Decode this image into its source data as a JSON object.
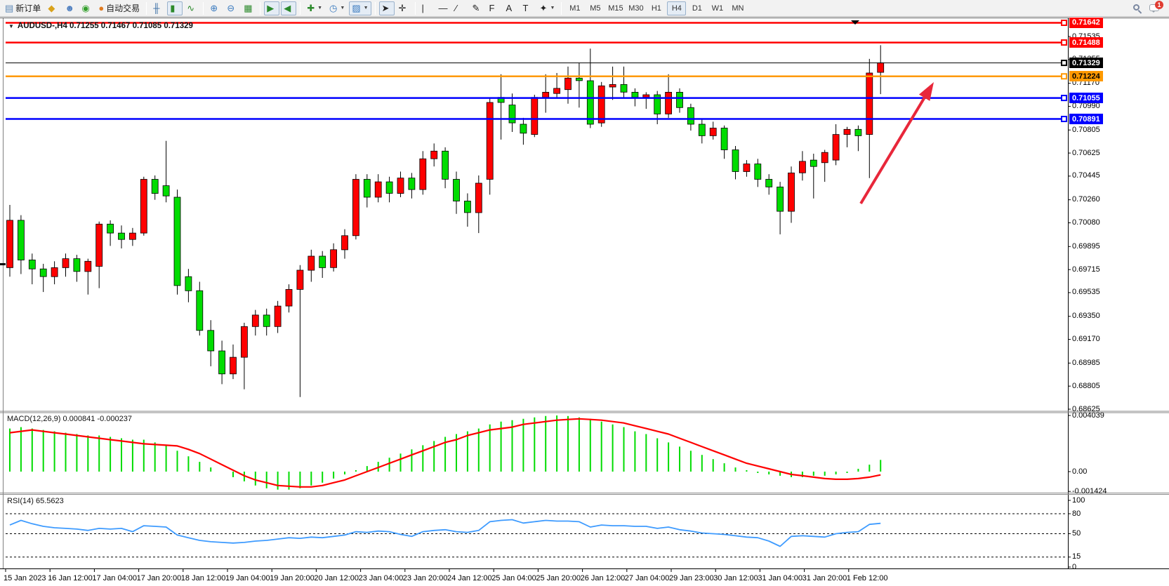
{
  "toolbar": {
    "groups": [
      {
        "items": [
          {
            "id": "new-order",
            "label": "新订单",
            "icon": "doc",
            "glyph": "▤",
            "color": "#5b87b5"
          },
          {
            "id": "charts",
            "icon": "gold",
            "glyph": "◆",
            "color": "#d9a21b"
          },
          {
            "id": "market-watch",
            "icon": "person",
            "glyph": "☻",
            "color": "#4f7fc0"
          },
          {
            "id": "signals",
            "icon": "signal",
            "glyph": "◉",
            "color": "#33a02c"
          },
          {
            "id": "auto-trading",
            "label": "自动交易",
            "icon": "basket",
            "glyph": "●",
            "color": "#e07b20"
          }
        ]
      },
      {
        "items": [
          {
            "id": "bar-chart",
            "icon": "bars",
            "glyph": "╫",
            "color": "#3a6ea5"
          },
          {
            "id": "candlestick-chart",
            "icon": "candles",
            "glyph": "▮",
            "color": "#2c8a2c",
            "active": true
          },
          {
            "id": "line-chart",
            "icon": "linechart",
            "glyph": "∿",
            "color": "#2c8a2c"
          }
        ]
      },
      {
        "items": [
          {
            "id": "zoom-in",
            "icon": "zoom-in",
            "glyph": "⊕",
            "color": "#3a7abf"
          },
          {
            "id": "zoom-out",
            "icon": "zoom-out",
            "glyph": "⊖",
            "color": "#3a7abf"
          },
          {
            "id": "tile-windows",
            "icon": "tiles",
            "glyph": "▦",
            "color": "#2c8a2c"
          }
        ]
      },
      {
        "items": [
          {
            "id": "auto-scroll",
            "icon": "auto-scroll",
            "glyph": "▶",
            "color": "#2c8a2c",
            "active": true
          },
          {
            "id": "chart-shift",
            "icon": "chart-shift",
            "glyph": "◀",
            "color": "#2c8a2c",
            "active": true
          }
        ]
      },
      {
        "items": [
          {
            "id": "indicators",
            "icon": "indicator-plus",
            "glyph": "✚",
            "color": "#2c8a2c",
            "dropdown": true
          },
          {
            "id": "periods",
            "icon": "clock",
            "glyph": "◷",
            "color": "#3a7abf",
            "dropdown": true
          },
          {
            "id": "templates",
            "icon": "template",
            "glyph": "▨",
            "color": "#3a7abf",
            "dropdown": true,
            "active": true
          }
        ]
      },
      {
        "items": [
          {
            "id": "cursor",
            "icon": "cursor-arrow",
            "glyph": "➤",
            "color": "#222",
            "active": true
          },
          {
            "id": "crosshair",
            "icon": "crosshair",
            "glyph": "✛",
            "color": "#222"
          }
        ]
      },
      {
        "items": [
          {
            "id": "vertical-line",
            "icon": "vline",
            "glyph": "|",
            "color": "#222"
          },
          {
            "id": "horizontal-line",
            "icon": "hline",
            "glyph": "—",
            "color": "#222"
          },
          {
            "id": "trendline",
            "icon": "trendline",
            "glyph": "∕",
            "color": "#222"
          },
          {
            "id": "equidistant-channel",
            "icon": "channel",
            "glyph": "✎",
            "color": "#222"
          },
          {
            "id": "fibonacci",
            "icon": "fibo",
            "glyph": "F",
            "color": "#222"
          },
          {
            "id": "text",
            "icon": "text-a",
            "glyph": "A",
            "color": "#222"
          },
          {
            "id": "text-label",
            "icon": "text-t",
            "glyph": "T",
            "color": "#222"
          },
          {
            "id": "arrows",
            "icon": "arrows",
            "glyph": "✦",
            "color": "#222",
            "dropdown": true
          }
        ]
      }
    ],
    "timeframes": [
      "M1",
      "M5",
      "M15",
      "M30",
      "H1",
      "H4",
      "D1",
      "W1",
      "MN"
    ],
    "active_timeframe": "H4",
    "notification_badge": "1"
  },
  "chart": {
    "title": "AUDUSD-,H4  0.71255 0.71467 0.71085 0.71329",
    "macd_label": "MACD(12,26,9) 0.000841 -0.000237",
    "rsi_label": "RSI(14) 65.5623"
  },
  "chart_data": {
    "type": "candlestick",
    "symbol": "AUDUSD-",
    "timeframe": "H4",
    "current_ohlc": {
      "open": "0.71255",
      "high": "0.71467",
      "low": "0.71085",
      "close": "0.71329"
    },
    "y_axis_ticks": [
      "0.71535",
      "0.71355",
      "0.71170",
      "0.70990",
      "0.70805",
      "0.70625",
      "0.70445",
      "0.70260",
      "0.70080",
      "0.69895",
      "0.69715",
      "0.69535",
      "0.69350",
      "0.69170",
      "0.68985",
      "0.68805",
      "0.68625"
    ],
    "y_axis_range": [
      0.68625,
      0.71642
    ],
    "x_labels": [
      "15 Jan 2023",
      "16 Jan 12:00",
      "17 Jan 04:00",
      "17 Jan 20:00",
      "18 Jan 12:00",
      "19 Jan 04:00",
      "19 Jan 20:00",
      "20 Jan 12:00",
      "23 Jan 04:00",
      "23 Jan 20:00",
      "24 Jan 12:00",
      "25 Jan 04:00",
      "25 Jan 20:00",
      "26 Jan 12:00",
      "27 Jan 04:00",
      "29 Jan 23:00",
      "30 Jan 12:00",
      "31 Jan 04:00",
      "31 Jan 20:00",
      "1 Feb 12:00"
    ],
    "candles": [
      [
        0.6973,
        0.7022,
        0.6966,
        0.701
      ],
      [
        0.701,
        0.7014,
        0.6968,
        0.6979
      ],
      [
        0.6979,
        0.6984,
        0.696,
        0.6972
      ],
      [
        0.6972,
        0.6976,
        0.6954,
        0.6966
      ],
      [
        0.6966,
        0.6978,
        0.696,
        0.6973
      ],
      [
        0.6973,
        0.6984,
        0.6966,
        0.698
      ],
      [
        0.698,
        0.6983,
        0.6962,
        0.697
      ],
      [
        0.697,
        0.698,
        0.6952,
        0.6978
      ],
      [
        0.6974,
        0.7009,
        0.6957,
        0.7007
      ],
      [
        0.7007,
        0.701,
        0.699,
        0.7
      ],
      [
        0.7,
        0.7006,
        0.6988,
        0.6995
      ],
      [
        0.6995,
        0.7004,
        0.699,
        0.7
      ],
      [
        0.7,
        0.7044,
        0.6998,
        0.7042
      ],
      [
        0.7042,
        0.7045,
        0.7026,
        0.7031
      ],
      [
        0.7037,
        0.7072,
        0.7024,
        0.7029
      ],
      [
        0.7028,
        0.7034,
        0.6952,
        0.6959
      ],
      [
        0.6966,
        0.6972,
        0.6946,
        0.6955
      ],
      [
        0.6955,
        0.6962,
        0.692,
        0.6924
      ],
      [
        0.6924,
        0.6932,
        0.6896,
        0.6908
      ],
      [
        0.6908,
        0.6916,
        0.6882,
        0.689
      ],
      [
        0.689,
        0.6913,
        0.6886,
        0.6903
      ],
      [
        0.6903,
        0.693,
        0.6878,
        0.6927
      ],
      [
        0.6927,
        0.694,
        0.692,
        0.6936
      ],
      [
        0.6936,
        0.6941,
        0.692,
        0.6927
      ],
      [
        0.6927,
        0.6947,
        0.6922,
        0.6943
      ],
      [
        0.6943,
        0.696,
        0.6938,
        0.6956
      ],
      [
        0.6956,
        0.6975,
        0.6872,
        0.6971
      ],
      [
        0.6971,
        0.6987,
        0.6962,
        0.6982
      ],
      [
        0.6982,
        0.6986,
        0.6965,
        0.6973
      ],
      [
        0.6973,
        0.6992,
        0.697,
        0.6987
      ],
      [
        0.6987,
        0.7003,
        0.698,
        0.6998
      ],
      [
        0.6998,
        0.7046,
        0.6995,
        0.7042
      ],
      [
        0.7042,
        0.7046,
        0.702,
        0.7028
      ],
      [
        0.7028,
        0.7046,
        0.7024,
        0.704
      ],
      [
        0.704,
        0.7044,
        0.7024,
        0.7031
      ],
      [
        0.7031,
        0.7048,
        0.7028,
        0.7043
      ],
      [
        0.7043,
        0.7047,
        0.7027,
        0.7034
      ],
      [
        0.7034,
        0.7064,
        0.703,
        0.7058
      ],
      [
        0.7058,
        0.707,
        0.7052,
        0.7064
      ],
      [
        0.7064,
        0.7067,
        0.7035,
        0.7042
      ],
      [
        0.7042,
        0.7048,
        0.7015,
        0.7025
      ],
      [
        0.7025,
        0.7031,
        0.7005,
        0.7016
      ],
      [
        0.7016,
        0.7045,
        0.7,
        0.7039
      ],
      [
        0.7042,
        0.7105,
        0.703,
        0.7102
      ],
      [
        0.7106,
        0.7124,
        0.7073,
        0.7102
      ],
      [
        0.71,
        0.7109,
        0.7079,
        0.7086
      ],
      [
        0.7085,
        0.709,
        0.7069,
        0.7078
      ],
      [
        0.7077,
        0.7108,
        0.7075,
        0.7106
      ],
      [
        0.7106,
        0.7124,
        0.7094,
        0.711
      ],
      [
        0.7109,
        0.7125,
        0.7106,
        0.7113
      ],
      [
        0.7112,
        0.713,
        0.7101,
        0.7121
      ],
      [
        0.7121,
        0.7133,
        0.7098,
        0.7119
      ],
      [
        0.7119,
        0.7144,
        0.7082,
        0.7085
      ],
      [
        0.7086,
        0.7118,
        0.7083,
        0.7115
      ],
      [
        0.7114,
        0.713,
        0.7104,
        0.7116
      ],
      [
        0.7116,
        0.713,
        0.7105,
        0.711
      ],
      [
        0.711,
        0.7113,
        0.7099,
        0.7106
      ],
      [
        0.7106,
        0.711,
        0.7097,
        0.7108
      ],
      [
        0.7108,
        0.7111,
        0.7085,
        0.7093
      ],
      [
        0.7093,
        0.7124,
        0.709,
        0.711
      ],
      [
        0.711,
        0.7113,
        0.7094,
        0.7098
      ],
      [
        0.7098,
        0.7101,
        0.708,
        0.7085
      ],
      [
        0.7085,
        0.7089,
        0.707,
        0.7076
      ],
      [
        0.7076,
        0.7087,
        0.7073,
        0.7082
      ],
      [
        0.7082,
        0.7084,
        0.7058,
        0.7065
      ],
      [
        0.7065,
        0.7068,
        0.7042,
        0.7048
      ],
      [
        0.7048,
        0.7057,
        0.7044,
        0.7054
      ],
      [
        0.7054,
        0.7058,
        0.7036,
        0.7042
      ],
      [
        0.7042,
        0.7046,
        0.703,
        0.7036
      ],
      [
        0.7036,
        0.704,
        0.6999,
        0.7017
      ],
      [
        0.7017,
        0.7052,
        0.7008,
        0.7047
      ],
      [
        0.7047,
        0.7064,
        0.7041,
        0.7056
      ],
      [
        0.7057,
        0.7062,
        0.7027,
        0.7052
      ],
      [
        0.7055,
        0.7065,
        0.704,
        0.7063
      ],
      [
        0.7057,
        0.7085,
        0.7053,
        0.7077
      ],
      [
        0.7077,
        0.7083,
        0.7067,
        0.7081
      ],
      [
        0.7081,
        0.7084,
        0.7064,
        0.7076
      ],
      [
        0.7077,
        0.7136,
        0.7043,
        0.7125
      ],
      [
        0.71255,
        0.71467,
        0.71085,
        0.71329
      ]
    ],
    "hlines": [
      {
        "price": 0.71642,
        "label": "0.71642",
        "color": "#FF0000",
        "width": 2.5,
        "badge_bg": "#FF0000",
        "badge_fg": "#FFFFFF"
      },
      {
        "price": 0.71488,
        "label": "0.71488",
        "color": "#FF0000",
        "width": 2.5,
        "badge_bg": "#FF0000",
        "badge_fg": "#FFFFFF"
      },
      {
        "price": 0.71329,
        "label": "0.71329",
        "color": "#000000",
        "width": 1,
        "badge_bg": "#000000",
        "badge_fg": "#FFFFFF"
      },
      {
        "price": 0.71224,
        "label": "0.71224",
        "color": "#FF9900",
        "width": 2.5,
        "badge_bg": "#FF9900",
        "badge_fg": "#000000"
      },
      {
        "price": 0.71055,
        "label": "0.71055",
        "color": "#0000FF",
        "width": 2.5,
        "badge_bg": "#0000FF",
        "badge_fg": "#FFFFFF"
      },
      {
        "price": 0.70891,
        "label": "0.70891",
        "color": "#0000FF",
        "width": 2.5,
        "badge_bg": "#0000FF",
        "badge_fg": "#FFFFFF"
      }
    ],
    "macd": {
      "params": "12,26,9",
      "current_values": [
        "0.000841",
        "-0.000237"
      ],
      "axis_labels": [
        "0.004039",
        "0.00",
        "-0.001424"
      ],
      "axis_values": [
        0.004039,
        0.0,
        -0.001424
      ],
      "histogram": [
        0.0031,
        0.0032,
        0.0031,
        0.003,
        0.0029,
        0.0028,
        0.0027,
        0.0026,
        0.0026,
        0.0025,
        0.0024,
        0.0023,
        0.0023,
        0.0021,
        0.0019,
        0.0015,
        0.0011,
        0.0007,
        0.0003,
        0.0,
        -0.0004,
        -0.0007,
        -0.001,
        -0.0012,
        -0.0013,
        -0.0013,
        -0.0012,
        -0.001,
        -0.0008,
        -0.0005,
        -0.0002,
        0.0001,
        0.0004,
        0.0007,
        0.001,
        0.0013,
        0.0016,
        0.0019,
        0.0022,
        0.0025,
        0.0027,
        0.0029,
        0.0031,
        0.0034,
        0.0036,
        0.0037,
        0.0038,
        0.0039,
        0.004,
        0.004039,
        0.004,
        0.0039,
        0.0038,
        0.0036,
        0.0034,
        0.0032,
        0.0029,
        0.0027,
        0.0024,
        0.0021,
        0.0018,
        0.0015,
        0.0012,
        0.0009,
        0.0006,
        0.0003,
        0.0001,
        -0.0001,
        -0.0002,
        -0.0003,
        -0.0004,
        -0.0004,
        -0.0003,
        -0.0003,
        -0.0002,
        -0.0001,
        0.0002,
        0.0005,
        0.000841
      ],
      "signal": [
        0.0028,
        0.0029,
        0.003,
        0.0029,
        0.0028,
        0.0027,
        0.0026,
        0.0025,
        0.0024,
        0.0023,
        0.0022,
        0.0021,
        0.002,
        0.00195,
        0.0019,
        0.00185,
        0.0016,
        0.0013,
        0.0009,
        0.0005,
        0.0001,
        -0.0003,
        -0.0006,
        -0.0008,
        -0.001,
        -0.00105,
        -0.0011,
        -0.0011,
        -0.001,
        -0.0008,
        -0.0006,
        -0.0003,
        0.0,
        0.0003,
        0.0006,
        0.0009,
        0.0012,
        0.0015,
        0.0018,
        0.0021,
        0.0023,
        0.0026,
        0.0028,
        0.003,
        0.0031,
        0.0032,
        0.0034,
        0.0035,
        0.0036,
        0.0037,
        0.00375,
        0.0038,
        0.00375,
        0.0037,
        0.0036,
        0.0035,
        0.0033,
        0.0031,
        0.0029,
        0.0027,
        0.0024,
        0.0021,
        0.0018,
        0.0015,
        0.0012,
        0.0009,
        0.0006,
        0.0004,
        0.0002,
        0.0,
        -0.0002,
        -0.0003,
        -0.0004,
        -0.0005,
        -0.00055,
        -0.00055,
        -0.0005,
        -0.0004,
        -0.000237
      ]
    },
    "rsi": {
      "params": "14",
      "current_value": "65.5623",
      "levels": [
        80,
        50,
        15
      ],
      "axis_labels": [
        "100",
        "80",
        "50",
        "15",
        "0"
      ],
      "axis_values": [
        100,
        80,
        50,
        15,
        0
      ],
      "values": [
        63,
        70,
        65,
        61,
        59,
        58,
        57,
        55,
        58,
        57,
        58,
        53,
        62,
        61,
        60,
        48,
        44,
        40,
        38,
        37,
        36,
        37,
        39,
        40,
        42,
        44,
        43,
        45,
        44,
        46,
        48,
        53,
        52,
        54,
        53,
        49,
        46,
        53,
        55,
        56,
        53,
        52,
        55,
        68,
        70,
        71,
        66,
        68,
        70,
        69,
        69,
        68,
        60,
        63,
        62,
        62,
        61,
        61,
        58,
        60,
        56,
        54,
        51,
        50,
        49,
        47,
        45,
        44,
        39,
        31,
        46,
        47,
        46,
        45,
        50,
        52,
        53,
        64,
        65.56
      ]
    },
    "annotation_arrow": {
      "from": [
        1226,
        290
      ],
      "to": [
        1330,
        117
      ],
      "color": "#E8273A"
    },
    "colors": {
      "bull": "#FF0000",
      "bear": "#00DC00",
      "wick": "#000000",
      "macd_hist": "#00DC00",
      "macd_signal": "#FF0000",
      "rsi_line": "#3E9BFF"
    }
  }
}
